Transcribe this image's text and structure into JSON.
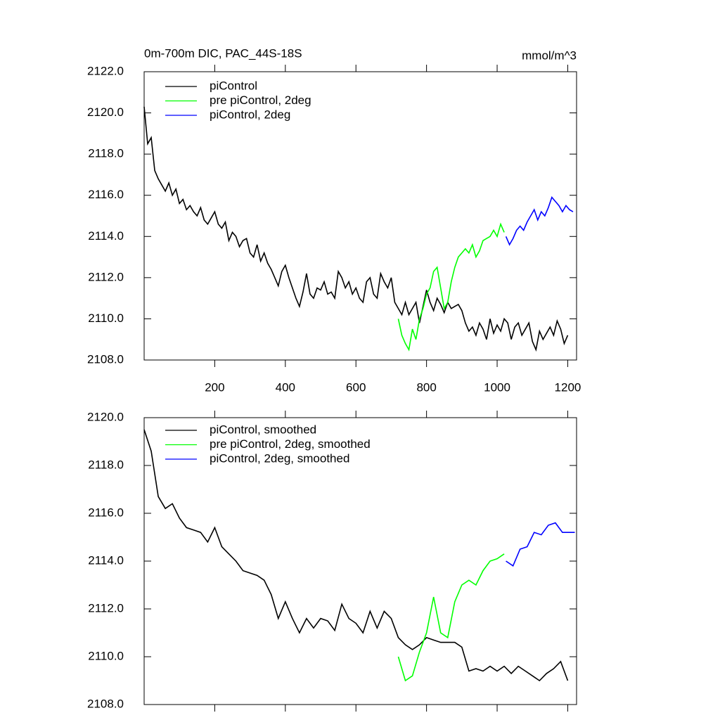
{
  "chart_data": [
    {
      "type": "line",
      "title": "0m-700m DIC, PAC_44S-18S",
      "units": "mmol/m^3",
      "xlim": [
        0,
        1225
      ],
      "xticks": [
        200,
        400,
        600,
        800,
        1000,
        1200
      ],
      "ylim": [
        2108,
        2122
      ],
      "yticks": [
        {
          "value": 2108,
          "label": "2108.0"
        },
        {
          "value": 2110,
          "label": "2110.0"
        },
        {
          "value": 2112,
          "label": "2112.0"
        },
        {
          "value": 2114,
          "label": "2114.0"
        },
        {
          "value": 2116,
          "label": "2116.0"
        },
        {
          "value": 2118,
          "label": "2118.0"
        },
        {
          "value": 2120,
          "label": "2120.0"
        },
        {
          "value": 2122,
          "label": "2122.0"
        }
      ],
      "legend": "top-left",
      "series": [
        {
          "name": "piControl",
          "color": "#000000",
          "x": [
            0,
            10,
            20,
            30,
            40,
            50,
            60,
            70,
            80,
            90,
            100,
            110,
            120,
            130,
            140,
            150,
            160,
            170,
            180,
            190,
            200,
            210,
            220,
            230,
            240,
            250,
            260,
            270,
            280,
            290,
            300,
            310,
            320,
            330,
            340,
            350,
            360,
            370,
            380,
            390,
            400,
            410,
            420,
            430,
            440,
            450,
            460,
            470,
            480,
            490,
            500,
            510,
            520,
            530,
            540,
            550,
            560,
            570,
            580,
            590,
            600,
            610,
            620,
            630,
            640,
            650,
            660,
            670,
            680,
            690,
            700,
            710,
            720,
            730,
            740,
            750,
            760,
            770,
            780,
            790,
            800,
            810,
            820,
            830,
            840,
            850,
            860,
            870,
            880,
            890,
            900,
            910,
            920,
            930,
            940,
            950,
            960,
            970,
            980,
            990,
            1000,
            1010,
            1020,
            1030,
            1040,
            1050,
            1060,
            1070,
            1080,
            1090,
            1100,
            1110,
            1120,
            1130,
            1140,
            1150,
            1160,
            1170,
            1180,
            1190,
            1200
          ],
          "values": [
            2120.3,
            2118.5,
            2118.8,
            2117.2,
            2116.8,
            2116.5,
            2116.2,
            2116.6,
            2116.0,
            2116.3,
            2115.6,
            2115.8,
            2115.3,
            2115.5,
            2115.2,
            2115.0,
            2115.4,
            2114.8,
            2114.6,
            2114.9,
            2115.2,
            2114.6,
            2114.4,
            2114.7,
            2113.8,
            2114.2,
            2114.0,
            2113.5,
            2113.8,
            2113.9,
            2113.2,
            2113.0,
            2113.6,
            2112.8,
            2113.2,
            2112.7,
            2112.4,
            2112.0,
            2111.6,
            2112.3,
            2112.6,
            2112.0,
            2111.5,
            2111.0,
            2110.6,
            2111.3,
            2112.2,
            2111.2,
            2111.0,
            2111.5,
            2111.4,
            2111.8,
            2111.2,
            2111.3,
            2111.0,
            2112.3,
            2112.0,
            2111.5,
            2111.8,
            2111.2,
            2111.5,
            2111.0,
            2110.8,
            2111.8,
            2112.0,
            2111.2,
            2111.0,
            2112.2,
            2111.8,
            2111.5,
            2112.0,
            2110.8,
            2110.5,
            2110.2,
            2110.8,
            2110.2,
            2110.5,
            2110.8,
            2109.8,
            2110.6,
            2111.4,
            2110.8,
            2110.4,
            2111.0,
            2110.7,
            2110.3,
            2110.8,
            2110.5,
            2110.6,
            2110.7,
            2110.4,
            2109.8,
            2109.4,
            2109.6,
            2109.2,
            2109.8,
            2109.5,
            2109.0,
            2110.0,
            2109.3,
            2109.7,
            2109.4,
            2110.0,
            2109.8,
            2109.0,
            2109.6,
            2109.8,
            2109.2,
            2109.5,
            2109.8,
            2108.9,
            2108.5,
            2109.4,
            2109.0,
            2109.3,
            2109.6,
            2109.2,
            2109.9,
            2109.5,
            2108.8,
            2109.2
          ]
        },
        {
          "name": "pre piControl, 2deg",
          "color": "#00ff00",
          "x": [
            720,
            730,
            740,
            750,
            760,
            770,
            780,
            790,
            800,
            810,
            820,
            830,
            840,
            850,
            860,
            870,
            880,
            890,
            900,
            910,
            920,
            930,
            940,
            950,
            960,
            970,
            980,
            990,
            1000,
            1010,
            1020
          ],
          "values": [
            2110.0,
            2109.2,
            2108.8,
            2108.5,
            2109.5,
            2109.0,
            2110.0,
            2110.5,
            2111.2,
            2111.5,
            2112.3,
            2112.5,
            2111.5,
            2110.5,
            2110.8,
            2111.8,
            2112.5,
            2113.0,
            2113.2,
            2113.4,
            2113.2,
            2113.6,
            2113.0,
            2113.3,
            2113.8,
            2113.9,
            2114.0,
            2114.3,
            2114.0,
            2114.6,
            2114.2
          ]
        },
        {
          "name": "piControl, 2deg",
          "color": "#0000ff",
          "x": [
            1025,
            1035,
            1045,
            1055,
            1065,
            1075,
            1085,
            1095,
            1105,
            1115,
            1125,
            1135,
            1145,
            1155,
            1165,
            1175,
            1185,
            1195,
            1205,
            1215
          ],
          "values": [
            2114.0,
            2113.6,
            2113.9,
            2114.3,
            2114.5,
            2114.3,
            2114.7,
            2115.0,
            2115.3,
            2114.8,
            2115.2,
            2115.0,
            2115.4,
            2115.9,
            2115.7,
            2115.5,
            2115.2,
            2115.5,
            2115.3,
            2115.2
          ]
        }
      ]
    },
    {
      "type": "line",
      "xlim": [
        0,
        1225
      ],
      "xticks": [
        200,
        400,
        600,
        800,
        1000,
        1200
      ],
      "ylim": [
        2108,
        2120
      ],
      "yticks": [
        {
          "value": 2108,
          "label": "2108.0"
        },
        {
          "value": 2110,
          "label": "2110.0"
        },
        {
          "value": 2112,
          "label": "2112.0"
        },
        {
          "value": 2114,
          "label": "2114.0"
        },
        {
          "value": 2116,
          "label": "2116.0"
        },
        {
          "value": 2118,
          "label": "2118.0"
        },
        {
          "value": 2120,
          "label": "2120.0"
        }
      ],
      "legend": "top-left",
      "series": [
        {
          "name": "piControl, smoothed",
          "color": "#000000",
          "x": [
            0,
            20,
            40,
            60,
            80,
            100,
            120,
            140,
            160,
            180,
            200,
            220,
            240,
            260,
            280,
            300,
            320,
            340,
            360,
            380,
            400,
            420,
            440,
            460,
            480,
            500,
            520,
            540,
            560,
            580,
            600,
            620,
            640,
            660,
            680,
            700,
            720,
            740,
            760,
            780,
            800,
            820,
            840,
            860,
            880,
            900,
            920,
            940,
            960,
            980,
            1000,
            1020,
            1040,
            1060,
            1080,
            1100,
            1120,
            1140,
            1160,
            1180,
            1200
          ],
          "values": [
            2119.5,
            2118.6,
            2116.7,
            2116.2,
            2116.4,
            2115.8,
            2115.4,
            2115.3,
            2115.2,
            2114.8,
            2115.4,
            2114.6,
            2114.3,
            2114.0,
            2113.6,
            2113.5,
            2113.4,
            2113.2,
            2112.6,
            2111.6,
            2112.3,
            2111.6,
            2111.0,
            2111.6,
            2111.2,
            2111.6,
            2111.5,
            2111.1,
            2112.2,
            2111.6,
            2111.4,
            2111.0,
            2111.9,
            2111.2,
            2111.9,
            2111.6,
            2110.8,
            2110.5,
            2110.3,
            2110.5,
            2110.8,
            2110.7,
            2110.6,
            2110.6,
            2110.6,
            2110.4,
            2109.4,
            2109.5,
            2109.4,
            2109.6,
            2109.4,
            2109.6,
            2109.3,
            2109.6,
            2109.4,
            2109.2,
            2109.0,
            2109.3,
            2109.5,
            2109.8,
            2109.0
          ]
        },
        {
          "name": "pre piControl, 2deg, smoothed",
          "color": "#00ff00",
          "x": [
            720,
            740,
            760,
            780,
            800,
            820,
            840,
            860,
            880,
            900,
            920,
            940,
            960,
            980,
            1000,
            1020
          ],
          "values": [
            2110.0,
            2109.0,
            2109.2,
            2110.2,
            2111.0,
            2112.5,
            2111.0,
            2110.8,
            2112.3,
            2113.0,
            2113.2,
            2113.0,
            2113.6,
            2114.0,
            2114.1,
            2114.3
          ]
        },
        {
          "name": "piControl, 2deg, smoothed",
          "color": "#0000ff",
          "x": [
            1025,
            1045,
            1065,
            1085,
            1105,
            1125,
            1145,
            1165,
            1185,
            1205,
            1220
          ],
          "values": [
            2114.0,
            2113.8,
            2114.5,
            2114.6,
            2115.2,
            2115.1,
            2115.5,
            2115.6,
            2115.2,
            2115.2,
            2115.2
          ]
        }
      ]
    }
  ]
}
